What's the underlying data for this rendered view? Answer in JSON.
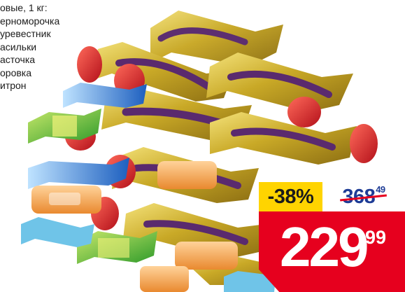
{
  "product": {
    "heading": "овые, 1 кг:",
    "items": [
      {
        "label": "ерноморочка"
      },
      {
        "label": "уревестник"
      },
      {
        "label": "асильки"
      },
      {
        "label": "асточка"
      },
      {
        "label": "оровка"
      },
      {
        "label": "итрон"
      }
    ]
  },
  "pricing": {
    "discount": "-38%",
    "old_price_main": "368",
    "old_price_cents": "49",
    "new_price_main": "229",
    "new_price_cents": "99"
  },
  "colors": {
    "discount_bg": "#ffd400",
    "price_banner": "#e6001e",
    "old_price_text": "#1e3c96",
    "strike": "#e6001e"
  },
  "icons": [
    "candy-pile-image"
  ]
}
